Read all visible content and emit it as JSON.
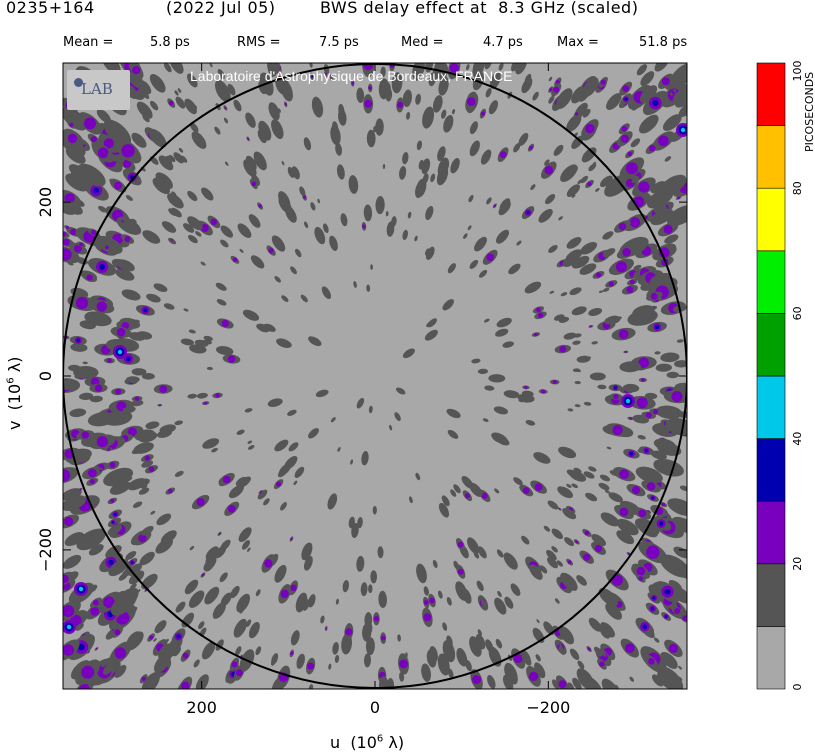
{
  "header": {
    "source": "0235+164",
    "date": "(2022 Jul 05)",
    "description": "BWS delay effect at  8.3 GHz (scaled)"
  },
  "stats": {
    "mean_label": "Mean =",
    "mean_value": "5.8 ps",
    "rms_label": "RMS =",
    "rms_value": "7.5 ps",
    "med_label": "Med =",
    "med_value": "4.7 ps",
    "max_label": "Max =",
    "max_value": "51.8 ps"
  },
  "overlay": {
    "lab_logo_text": "LAB",
    "lab_caption": "Laboratoire d'Astrophysique de Bordeaux, FRANCE"
  },
  "colorbar": {
    "label": "PICOSECONDS",
    "ticks": [
      "0",
      "20",
      "40",
      "60",
      "80",
      "100"
    ],
    "colors": [
      "#a8a8a8",
      "#555555",
      "#7a00c0",
      "#0000b0",
      "#00c8e8",
      "#00a000",
      "#00ee00",
      "#ffff00",
      "#ffc000",
      "#ff0000"
    ]
  },
  "chart_data": {
    "type": "heatmap",
    "title": "0235+164  (2022 Jul 05)  BWS delay effect at 8.3 GHz (scaled)",
    "xlabel": "u  (10^6 λ)",
    "ylabel": "v  (10^6 λ)",
    "xlim": [
      360,
      -360
    ],
    "ylim": [
      -360,
      360
    ],
    "x_ticks": [
      "200",
      "0",
      "−200"
    ],
    "y_ticks": [
      "200",
      "0",
      "−200"
    ],
    "x_tick_values": [
      200,
      0,
      -200
    ],
    "y_tick_values": [
      200,
      0,
      -200
    ],
    "circle_radius": 360,
    "value_range": [
      0,
      100
    ],
    "units": "PICOSECONDS",
    "summary": {
      "mean_ps": 5.8,
      "rms_ps": 7.5,
      "median_ps": 4.7,
      "max_ps": 51.8
    }
  }
}
